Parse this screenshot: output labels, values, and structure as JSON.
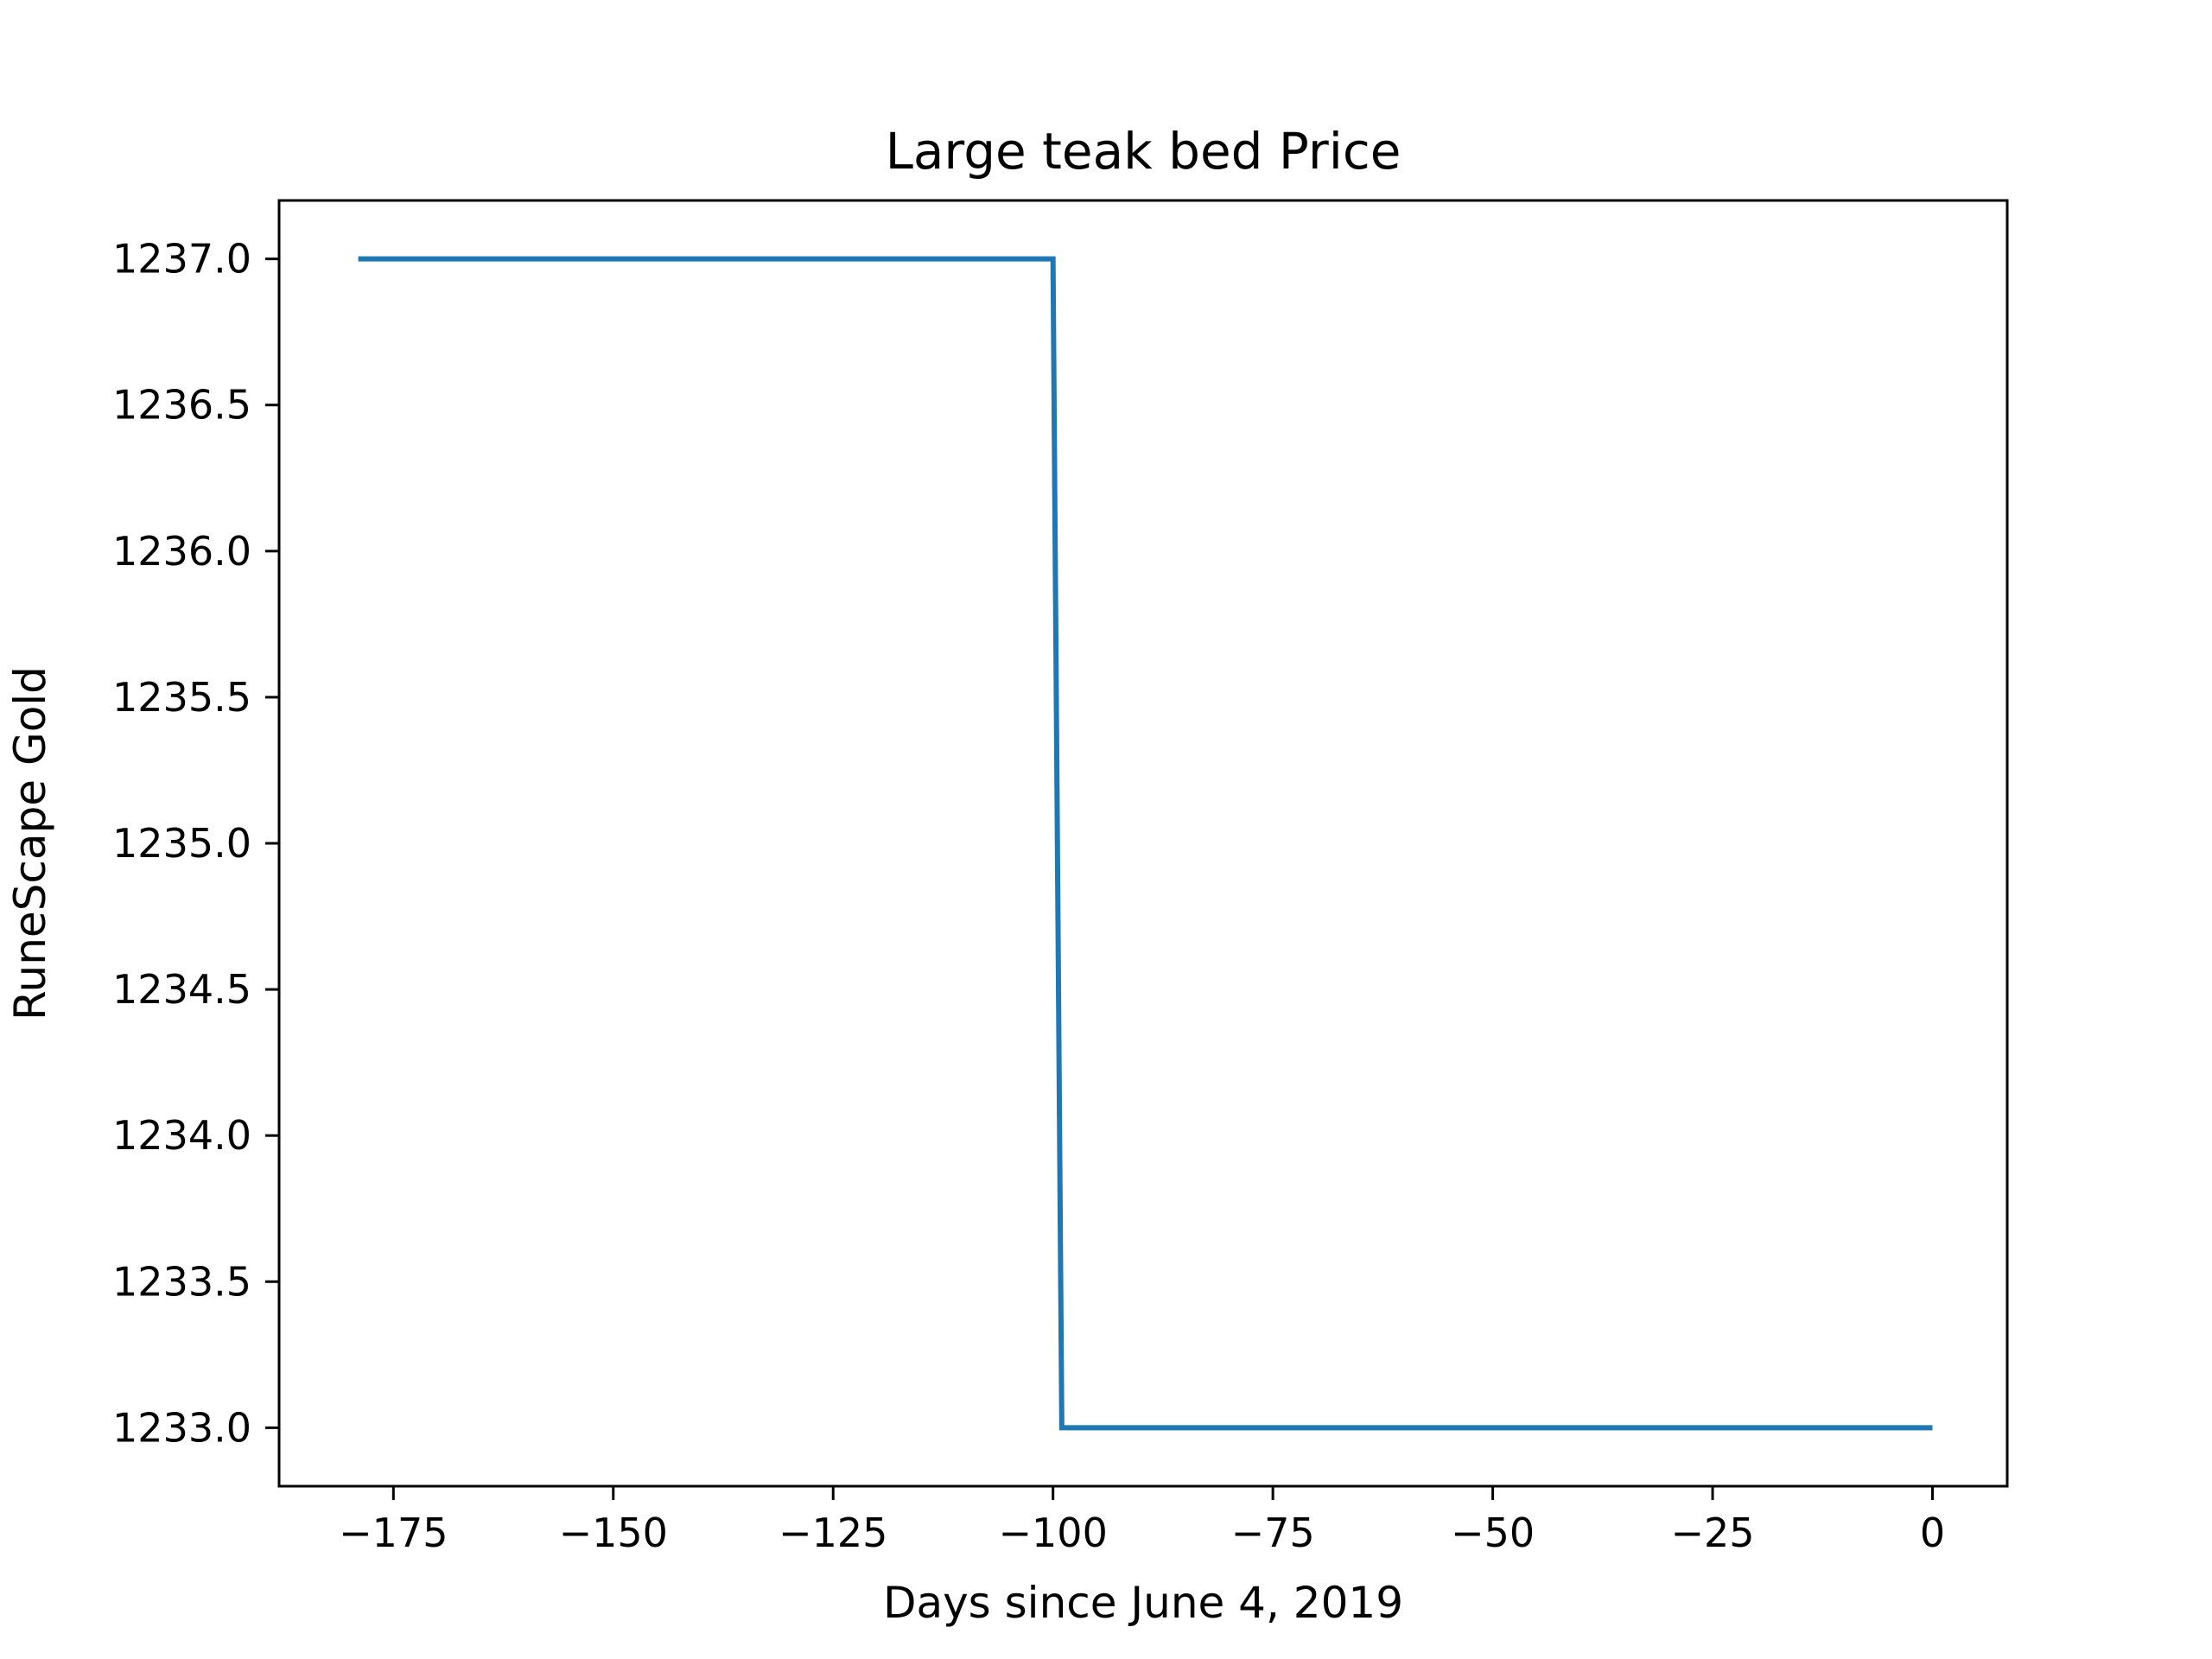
{
  "chart_data": {
    "type": "line",
    "title": "Large teak bed Price",
    "xlabel": "Days since June 4, 2019",
    "ylabel": "RuneScape Gold",
    "xlim": [
      -188,
      8.5
    ],
    "ylim": [
      1232.8,
      1237.2
    ],
    "x_ticks": [
      -175,
      -150,
      -125,
      -100,
      -75,
      -50,
      -25,
      0
    ],
    "x_tick_labels": [
      "−175",
      "−150",
      "−125",
      "−100",
      "−75",
      "−50",
      "−25",
      "0"
    ],
    "y_ticks": [
      1233.0,
      1233.5,
      1234.0,
      1234.5,
      1235.0,
      1235.5,
      1236.0,
      1236.5,
      1237.0
    ],
    "y_tick_labels": [
      "1233.0",
      "1233.5",
      "1234.0",
      "1234.5",
      "1235.0",
      "1235.5",
      "1236.0",
      "1236.5",
      "1237.0"
    ],
    "grid": false,
    "series": [
      {
        "color": "#1f77b4",
        "x": [
          -179,
          -100,
          -99,
          0
        ],
        "y": [
          1237,
          1237,
          1233,
          1233
        ]
      }
    ]
  }
}
